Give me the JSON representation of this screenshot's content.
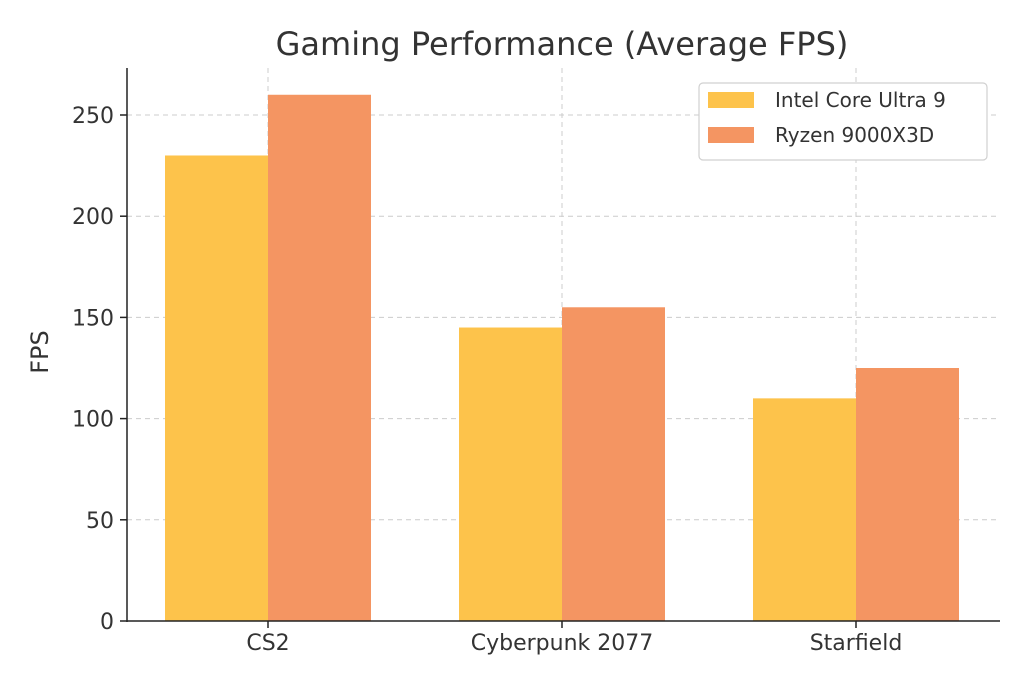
{
  "chart_data": {
    "type": "bar",
    "title": "Gaming Performance (Average FPS)",
    "xlabel": "",
    "ylabel": "FPS",
    "categories": [
      "CS2",
      "Cyberpunk 2077",
      "Starfield"
    ],
    "series": [
      {
        "name": "Intel Core Ultra 9",
        "color": "#fdc34b",
        "values": [
          230,
          145,
          110
        ]
      },
      {
        "name": "Ryzen 9000X3D",
        "color": "#f49562",
        "values": [
          260,
          155,
          125
        ]
      }
    ],
    "ylim": [
      0,
      272
    ],
    "yticks": [
      0,
      50,
      100,
      150,
      200,
      250
    ],
    "grid": true,
    "legend_position": "upper right"
  }
}
